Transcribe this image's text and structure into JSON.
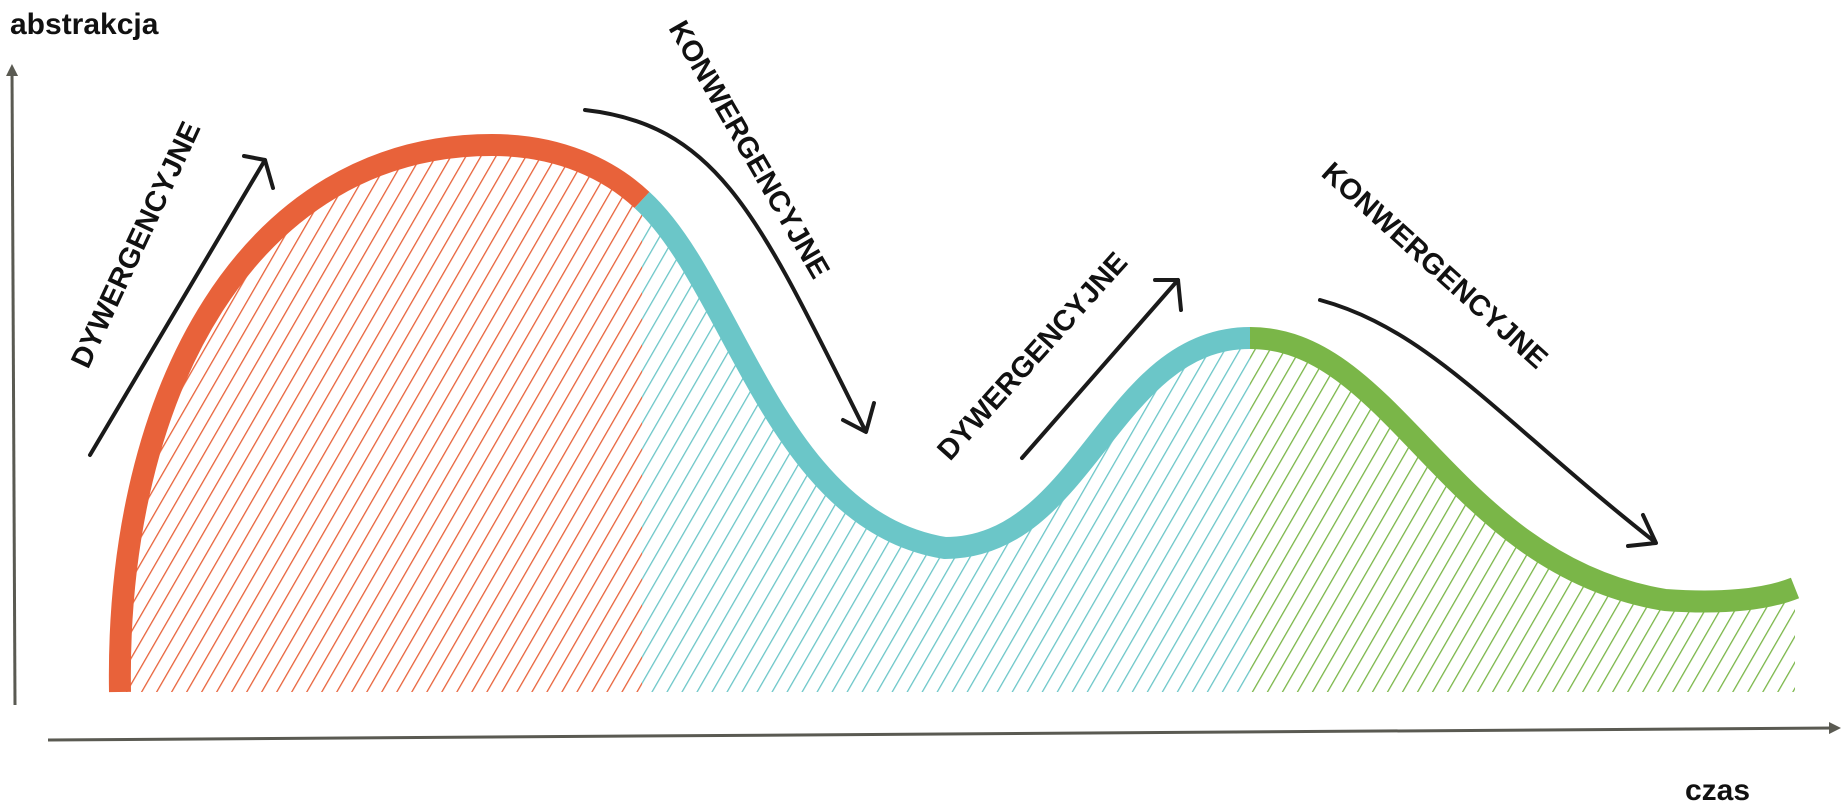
{
  "axes": {
    "y_label": "abstrakcja",
    "x_label": "czas",
    "color": "#5a5a52"
  },
  "phases": [
    {
      "label": "DYWERGENCYJNE",
      "kind": "divergent",
      "color": "#e8623a"
    },
    {
      "label": "KONWERGENCYJNE",
      "kind": "convergent",
      "color": "#6bc6c8"
    },
    {
      "label": "DYWERGENCYJNE",
      "kind": "divergent",
      "color": "#6bc6c8"
    },
    {
      "label": "KONWERGENCYJNE",
      "kind": "convergent",
      "color": "#7ab648"
    }
  ],
  "arrow_color": "#1a1a1a"
}
